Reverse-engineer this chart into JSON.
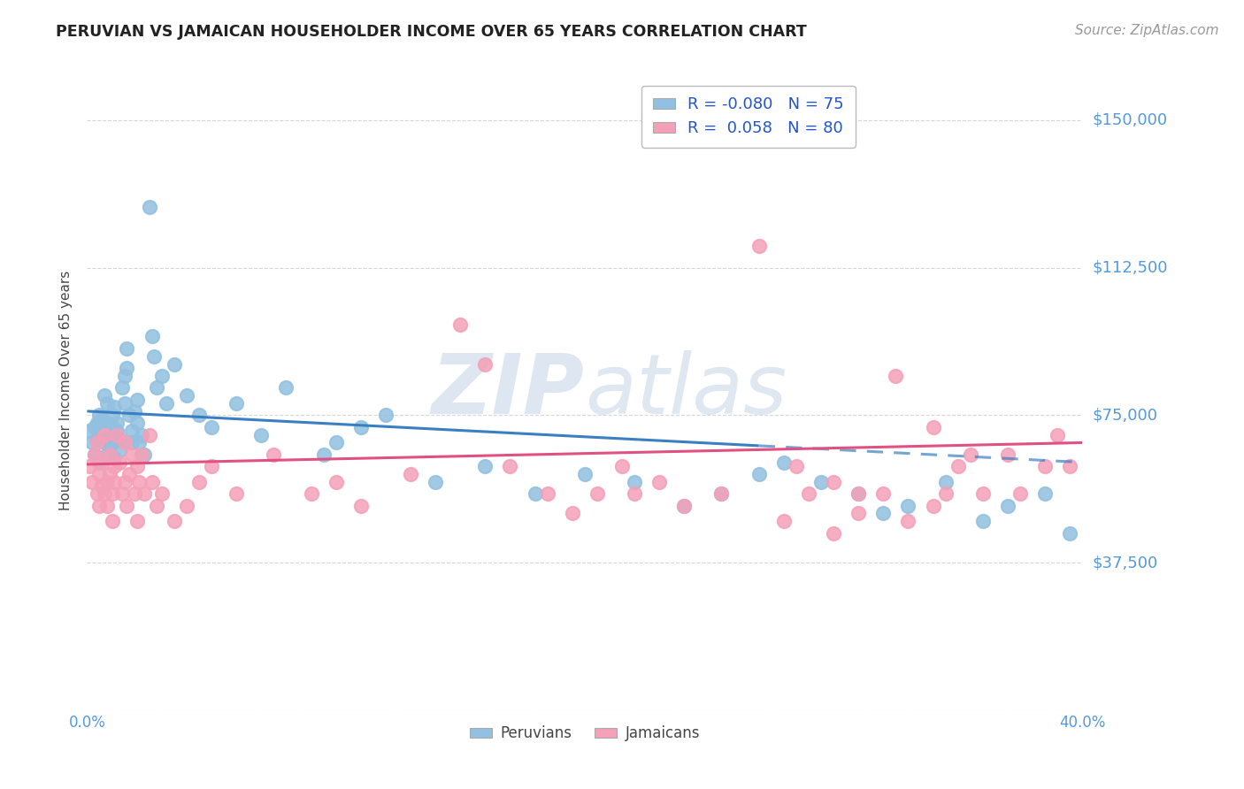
{
  "title": "PERUVIAN VS JAMAICAN HOUSEHOLDER INCOME OVER 65 YEARS CORRELATION CHART",
  "source_text": "Source: ZipAtlas.com",
  "ylabel": "Householder Income Over 65 years",
  "xlim": [
    0.0,
    0.4
  ],
  "ylim": [
    0,
    162500
  ],
  "yticks": [
    0,
    37500,
    75000,
    112500,
    150000
  ],
  "ytick_labels": [
    "",
    "$37,500",
    "$75,000",
    "$112,500",
    "$150,000"
  ],
  "xtick_labels": [
    "0.0%",
    "40.0%"
  ],
  "peruvian_color": "#92c0e0",
  "jamaican_color": "#f4a0b8",
  "peruvian_R": -0.08,
  "peruvian_N": 75,
  "jamaican_R": 0.058,
  "jamaican_N": 80,
  "trend_blue": "#3a7fc1",
  "trend_pink": "#e05080",
  "grid_color": "#cccccc",
  "tick_label_color": "#5599dd",
  "watermark_zip": "ZIP",
  "watermark_atlas": "atlas",
  "peruvian_x": [
    0.001,
    0.002,
    0.003,
    0.003,
    0.004,
    0.004,
    0.005,
    0.005,
    0.006,
    0.006,
    0.007,
    0.007,
    0.008,
    0.008,
    0.008,
    0.009,
    0.009,
    0.01,
    0.01,
    0.01,
    0.011,
    0.011,
    0.012,
    0.012,
    0.013,
    0.013,
    0.014,
    0.015,
    0.015,
    0.016,
    0.016,
    0.017,
    0.018,
    0.018,
    0.019,
    0.02,
    0.02,
    0.021,
    0.022,
    0.023,
    0.025,
    0.026,
    0.027,
    0.028,
    0.03,
    0.032,
    0.035,
    0.04,
    0.045,
    0.05,
    0.06,
    0.07,
    0.08,
    0.095,
    0.1,
    0.11,
    0.12,
    0.14,
    0.16,
    0.18,
    0.2,
    0.22,
    0.24,
    0.255,
    0.27,
    0.28,
    0.295,
    0.31,
    0.32,
    0.33,
    0.345,
    0.36,
    0.37,
    0.385,
    0.395
  ],
  "peruvian_y": [
    71000,
    68000,
    72000,
    65000,
    73000,
    69000,
    75000,
    63000,
    71000,
    74000,
    68000,
    80000,
    73000,
    65000,
    78000,
    70000,
    67000,
    72000,
    75000,
    68000,
    64000,
    77000,
    71000,
    73000,
    66000,
    69000,
    82000,
    85000,
    78000,
    87000,
    92000,
    75000,
    71000,
    68000,
    76000,
    79000,
    73000,
    68000,
    70000,
    65000,
    128000,
    95000,
    90000,
    82000,
    85000,
    78000,
    88000,
    80000,
    75000,
    72000,
    78000,
    70000,
    82000,
    65000,
    68000,
    72000,
    75000,
    58000,
    62000,
    55000,
    60000,
    58000,
    52000,
    55000,
    60000,
    63000,
    58000,
    55000,
    50000,
    52000,
    58000,
    48000,
    52000,
    55000,
    45000
  ],
  "jamaican_x": [
    0.001,
    0.002,
    0.003,
    0.004,
    0.004,
    0.005,
    0.005,
    0.006,
    0.006,
    0.007,
    0.007,
    0.008,
    0.008,
    0.009,
    0.009,
    0.01,
    0.01,
    0.011,
    0.011,
    0.012,
    0.013,
    0.014,
    0.015,
    0.015,
    0.016,
    0.017,
    0.018,
    0.019,
    0.02,
    0.02,
    0.021,
    0.022,
    0.023,
    0.025,
    0.026,
    0.028,
    0.03,
    0.035,
    0.04,
    0.045,
    0.05,
    0.06,
    0.075,
    0.09,
    0.1,
    0.11,
    0.13,
    0.15,
    0.16,
    0.17,
    0.185,
    0.195,
    0.205,
    0.215,
    0.22,
    0.23,
    0.24,
    0.255,
    0.27,
    0.285,
    0.3,
    0.31,
    0.325,
    0.34,
    0.35,
    0.36,
    0.37,
    0.375,
    0.385,
    0.39,
    0.395,
    0.28,
    0.29,
    0.3,
    0.31,
    0.32,
    0.33,
    0.34,
    0.345,
    0.355
  ],
  "jamaican_y": [
    62000,
    58000,
    65000,
    55000,
    68000,
    60000,
    52000,
    57000,
    63000,
    55000,
    70000,
    58000,
    52000,
    60000,
    65000,
    48000,
    55000,
    62000,
    58000,
    70000,
    63000,
    55000,
    68000,
    58000,
    52000,
    60000,
    65000,
    55000,
    48000,
    62000,
    58000,
    65000,
    55000,
    70000,
    58000,
    52000,
    55000,
    48000,
    52000,
    58000,
    62000,
    55000,
    65000,
    55000,
    58000,
    52000,
    60000,
    98000,
    88000,
    62000,
    55000,
    50000,
    55000,
    62000,
    55000,
    58000,
    52000,
    55000,
    118000,
    62000,
    58000,
    55000,
    85000,
    72000,
    62000,
    55000,
    65000,
    55000,
    62000,
    70000,
    62000,
    48000,
    55000,
    45000,
    50000,
    55000,
    48000,
    52000,
    55000,
    65000
  ]
}
